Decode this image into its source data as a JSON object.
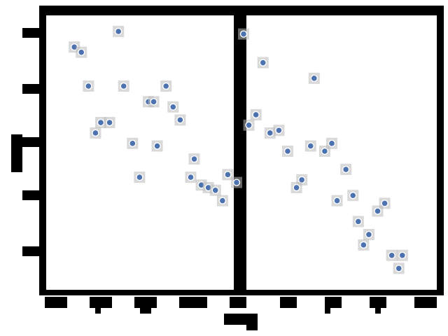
{
  "chart_data": {
    "type": "scatter",
    "title": "",
    "xlabel": "",
    "ylabel": "",
    "grid": false,
    "legend": "none",
    "point_color": "#4c72b0",
    "frame_color": "#000000",
    "panels": [
      {
        "name": "",
        "xlim": [
          0,
          10
        ],
        "ylim": [
          0,
          10
        ],
        "points": [
          {
            "x": 0.8,
            "y": 9.0
          },
          {
            "x": 1.2,
            "y": 8.8
          },
          {
            "x": 3.3,
            "y": 9.6
          },
          {
            "x": 1.6,
            "y": 7.5
          },
          {
            "x": 3.6,
            "y": 7.5
          },
          {
            "x": 6.0,
            "y": 7.5
          },
          {
            "x": 5.0,
            "y": 6.9
          },
          {
            "x": 5.3,
            "y": 6.9
          },
          {
            "x": 6.4,
            "y": 6.7
          },
          {
            "x": 6.8,
            "y": 6.2
          },
          {
            "x": 2.3,
            "y": 6.1
          },
          {
            "x": 2.8,
            "y": 6.1
          },
          {
            "x": 2.0,
            "y": 5.7
          },
          {
            "x": 4.1,
            "y": 5.3
          },
          {
            "x": 5.5,
            "y": 5.2
          },
          {
            "x": 7.6,
            "y": 4.7
          },
          {
            "x": 4.5,
            "y": 4.0
          },
          {
            "x": 7.4,
            "y": 4.0
          },
          {
            "x": 8.0,
            "y": 3.7
          },
          {
            "x": 8.4,
            "y": 3.6
          },
          {
            "x": 8.8,
            "y": 3.5
          },
          {
            "x": 9.5,
            "y": 4.1
          },
          {
            "x": 10.0,
            "y": 3.8
          },
          {
            "x": 9.2,
            "y": 3.1
          }
        ]
      },
      {
        "name": "",
        "xlim": [
          0,
          10
        ],
        "ylim": [
          0,
          10
        ],
        "points": [
          {
            "x": 0.0,
            "y": 9.5
          },
          {
            "x": 1.1,
            "y": 8.4
          },
          {
            "x": 4.0,
            "y": 7.8
          },
          {
            "x": 0.7,
            "y": 6.4
          },
          {
            "x": 0.3,
            "y": 6.0
          },
          {
            "x": 1.5,
            "y": 5.7
          },
          {
            "x": 2.0,
            "y": 5.8
          },
          {
            "x": 2.5,
            "y": 5.0
          },
          {
            "x": 3.8,
            "y": 5.2
          },
          {
            "x": 4.6,
            "y": 5.0
          },
          {
            "x": 5.0,
            "y": 5.3
          },
          {
            "x": 5.8,
            "y": 4.3
          },
          {
            "x": 3.3,
            "y": 3.9
          },
          {
            "x": 3.0,
            "y": 3.6
          },
          {
            "x": 5.3,
            "y": 3.1
          },
          {
            "x": 6.2,
            "y": 3.3
          },
          {
            "x": 8.0,
            "y": 3.0
          },
          {
            "x": 7.6,
            "y": 2.7
          },
          {
            "x": 6.5,
            "y": 2.3
          },
          {
            "x": 7.1,
            "y": 1.8
          },
          {
            "x": 6.8,
            "y": 1.4
          },
          {
            "x": 8.4,
            "y": 1.0
          },
          {
            "x": 9.0,
            "y": 1.0
          },
          {
            "x": 8.8,
            "y": 0.5
          }
        ]
      }
    ]
  }
}
